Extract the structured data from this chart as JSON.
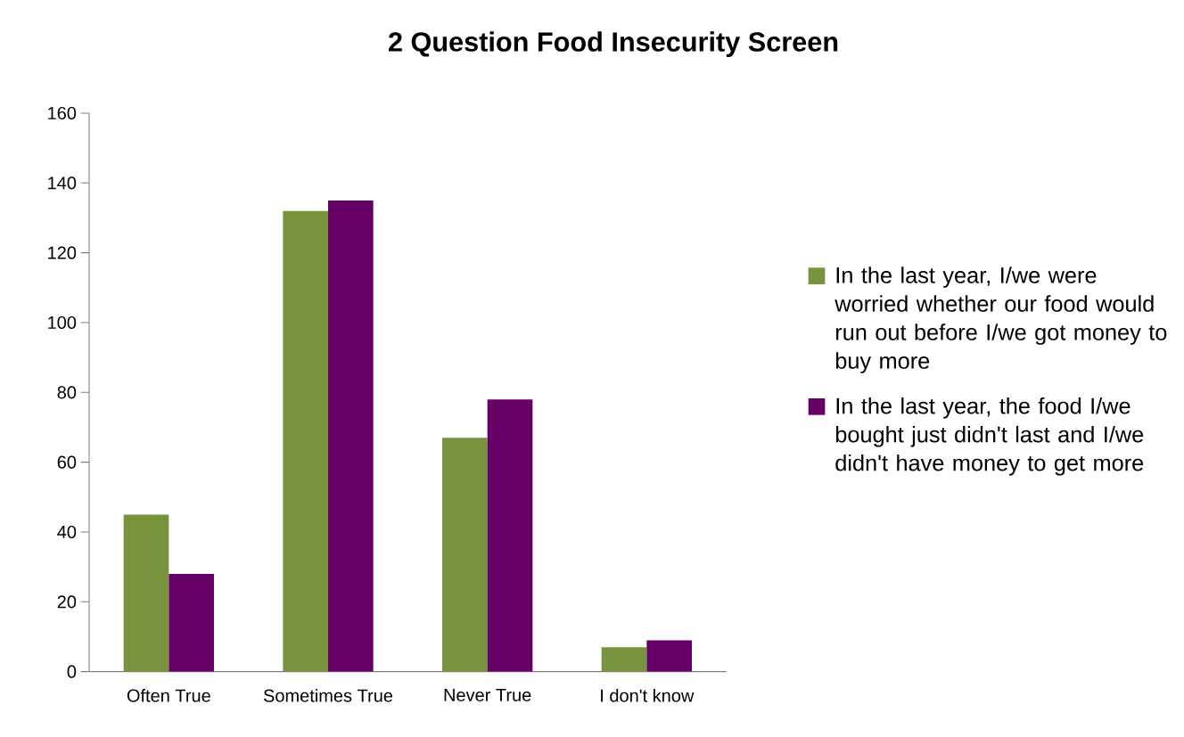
{
  "chart_data": {
    "type": "bar",
    "title": "2 Question Food Insecurity Screen",
    "categories": [
      "Often True",
      "Sometimes True",
      "Never True",
      "I don't know"
    ],
    "series": [
      {
        "name": "In the last year, I/we were worried whether our food would run out before I/we got money to buy more",
        "color": "#77933c",
        "values": [
          45,
          132,
          67,
          7
        ]
      },
      {
        "name": "In the last year, the food I/we bought just didn't last and I/we didn't have money to get more",
        "color": "#660066",
        "values": [
          28,
          135,
          78,
          9
        ]
      }
    ],
    "ylim": [
      0,
      160
    ],
    "yticks": [
      0,
      20,
      40,
      60,
      80,
      100,
      120,
      140,
      160
    ],
    "legend": "right"
  }
}
